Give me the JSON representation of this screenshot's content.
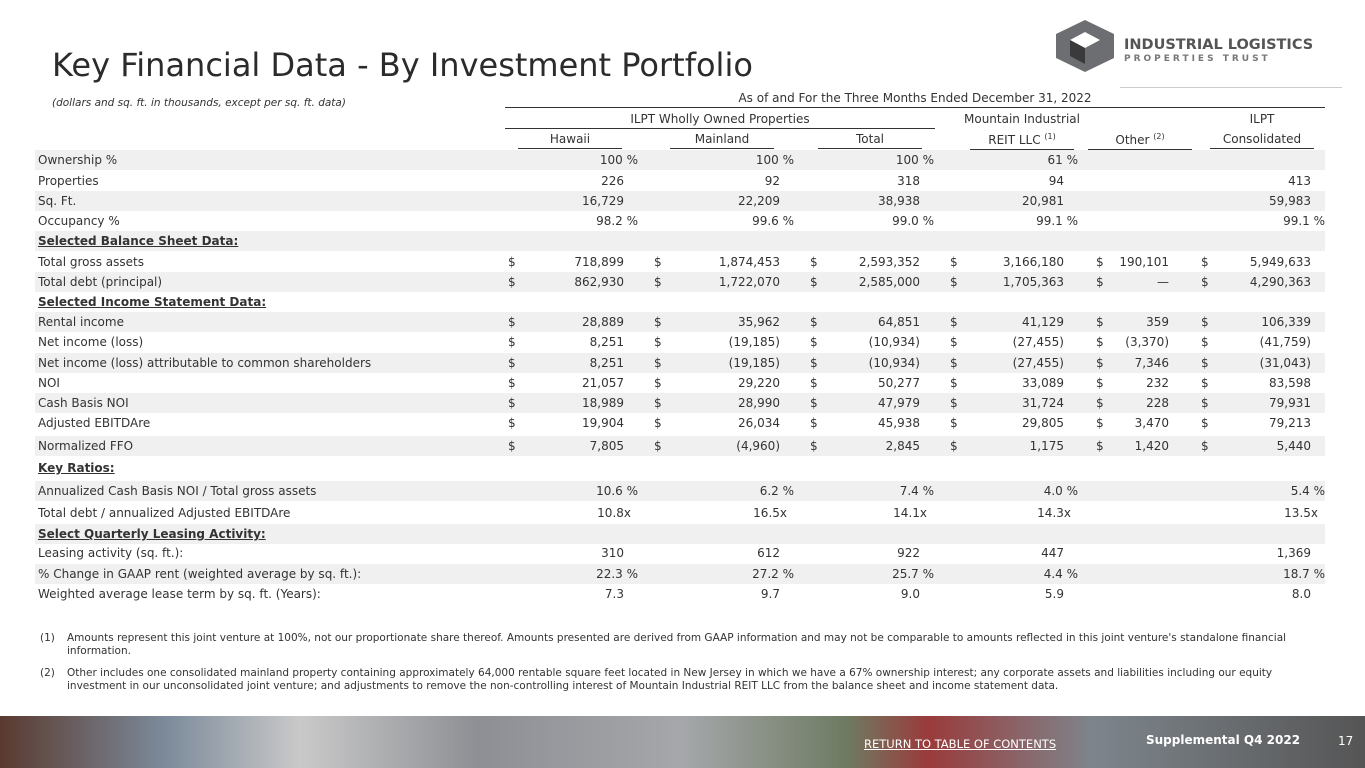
{
  "header": {
    "title": "Key Financial Data - By Investment Portfolio",
    "subtitle": "(dollars and sq. ft. in thousands, except per sq. ft. data)",
    "logo": {
      "line1": "INDUSTRIAL LOGISTICS",
      "line2": "PROPERTIES TRUST"
    }
  },
  "table": {
    "period": "As of and For the Three Months Ended December 31, 2022",
    "group": "ILPT Wholly Owned Properties",
    "columns": [
      {
        "name": "Hawaii"
      },
      {
        "name": "Mainland"
      },
      {
        "name": "Total"
      },
      {
        "name": "REIT LLC",
        "top": "Mountain Industrial",
        "note": "(1)"
      },
      {
        "name": "Other",
        "note": "(2)"
      },
      {
        "name": "Consolidated",
        "top": "ILPT"
      }
    ],
    "rows": [
      {
        "label": "Ownership %",
        "values": [
          "100 %",
          "100 %",
          "100 %",
          "61 %",
          null,
          null
        ]
      },
      {
        "label": "Properties",
        "values": [
          "226",
          "92",
          "318",
          "94",
          null,
          "413"
        ]
      },
      {
        "label": "Sq. Ft.",
        "values": [
          "16,729",
          "22,209",
          "38,938",
          "20,981",
          null,
          "59,983"
        ]
      },
      {
        "label": "Occupancy %",
        "values": [
          "98.2 %",
          "99.6 %",
          "99.0 %",
          "99.1 %",
          null,
          "99.1 %"
        ]
      },
      {
        "section": "Selected Balance Sheet Data:"
      },
      {
        "label": "Total gross assets",
        "currency": "$",
        "values": [
          "718,899",
          "1,874,453",
          "2,593,352",
          "3,166,180",
          "190,101",
          "5,949,633"
        ]
      },
      {
        "label": "Total debt (principal)",
        "currency": "$",
        "values": [
          "862,930",
          "1,722,070",
          "2,585,000",
          "1,705,363",
          "—",
          "4,290,363"
        ]
      },
      {
        "section": "Selected Income Statement Data:"
      },
      {
        "label": "Rental income",
        "currency": "$",
        "values": [
          "28,889",
          "35,962",
          "64,851",
          "41,129",
          "359",
          "106,339"
        ]
      },
      {
        "label": "Net income (loss)",
        "currency": "$",
        "values": [
          "8,251",
          "(19,185)",
          "(10,934)",
          "(27,455)",
          "(3,370)",
          "(41,759)"
        ]
      },
      {
        "label": "Net income (loss) attributable to common shareholders",
        "currency": "$",
        "values": [
          "8,251",
          "(19,185)",
          "(10,934)",
          "(27,455)",
          "7,346",
          "(31,043)"
        ]
      },
      {
        "label": "NOI",
        "currency": "$",
        "values": [
          "21,057",
          "29,220",
          "50,277",
          "33,089",
          "232",
          "83,598"
        ]
      },
      {
        "label": "Cash Basis NOI",
        "currency": "$",
        "values": [
          "18,989",
          "28,990",
          "47,979",
          "31,724",
          "228",
          "79,931"
        ]
      },
      {
        "label": "Adjusted EBITDAre",
        "currency": "$",
        "values": [
          "19,904",
          "26,034",
          "45,938",
          "29,805",
          "3,470",
          "79,213"
        ]
      },
      {
        "label": "Normalized FFO",
        "currency": "$",
        "values": [
          "7,805",
          "(4,960)",
          "2,845",
          "1,175",
          "1,420",
          "5,440"
        ]
      },
      {
        "section": "Key Ratios:"
      },
      {
        "label": "Annualized Cash Basis NOI / Total gross assets",
        "values": [
          "10.6 %",
          "6.2 %",
          "7.4 %",
          "4.0 %",
          null,
          "5.4 %"
        ]
      },
      {
        "label": "Total debt / annualized Adjusted EBITDAre",
        "values": [
          "10.8x",
          "16.5x",
          "14.1x",
          "14.3x",
          null,
          "13.5x"
        ]
      },
      {
        "section": "Select Quarterly Leasing Activity:"
      },
      {
        "label": "Leasing activity (sq. ft.):",
        "values": [
          "310",
          "612",
          "922",
          "447",
          null,
          "1,369"
        ]
      },
      {
        "label": "% Change in GAAP rent (weighted average by sq. ft.):",
        "values": [
          "22.3 %",
          "27.2 %",
          "25.7 %",
          "4.4 %",
          null,
          "18.7 %"
        ]
      },
      {
        "label": "Weighted average lease term by sq. ft. (Years):",
        "values": [
          "7.3",
          "9.7",
          "9.0",
          "5.9",
          null,
          "8.0"
        ]
      }
    ]
  },
  "footnotes": [
    {
      "mark": "(1)",
      "text": "Amounts represent this joint venture at 100%, not our proportionate share thereof. Amounts presented are derived from GAAP information and may not be comparable to amounts reflected in this joint venture's standalone financial information."
    },
    {
      "mark": "(2)",
      "text": "Other includes one consolidated mainland property containing approximately 64,000 rentable square feet located in New Jersey in which we have a 67% ownership interest; any corporate assets and liabilities including our equity investment in our unconsolidated joint venture; and adjustments to remove the non-controlling interest of Mountain Industrial REIT LLC from the balance sheet and income statement data."
    }
  ],
  "footer": {
    "link": "RETURN TO TABLE OF CONTENTS",
    "label": "Supplemental Q4 2022",
    "page": "17"
  }
}
